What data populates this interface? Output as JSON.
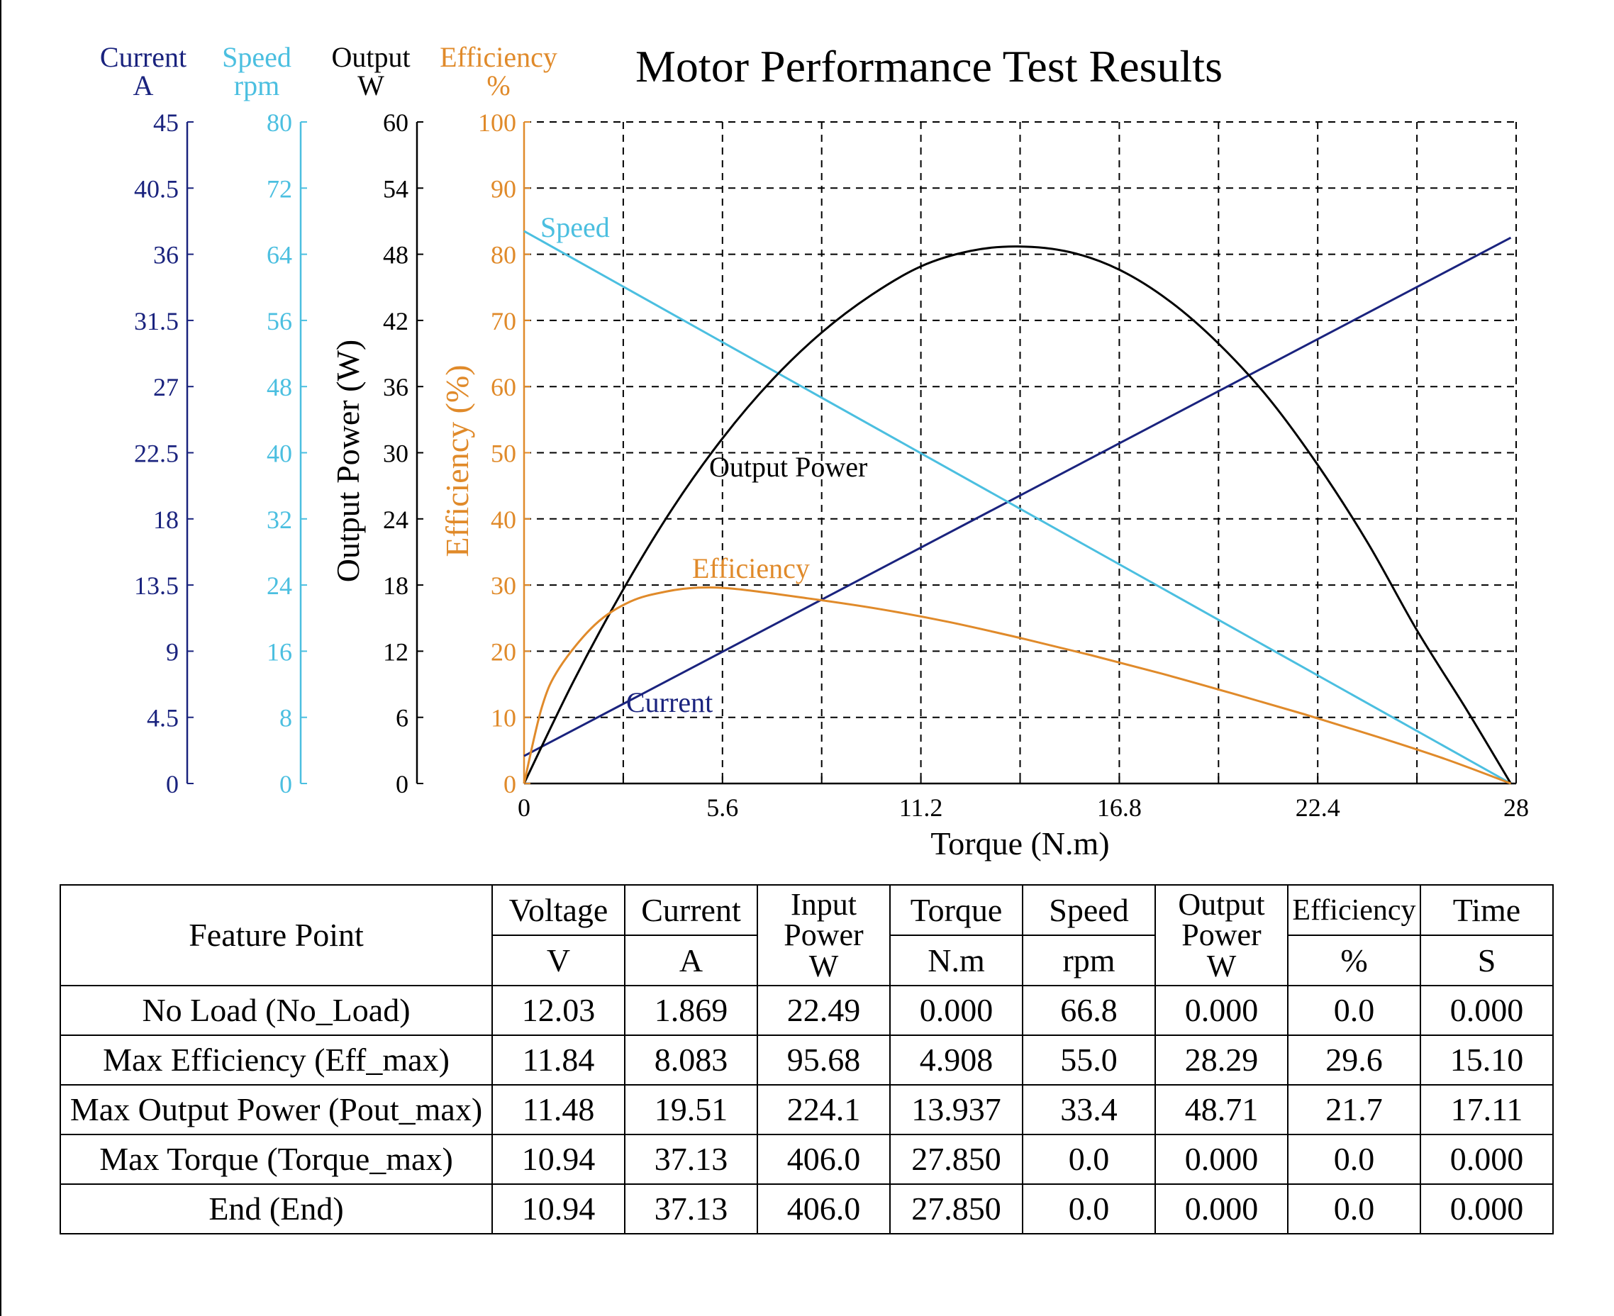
{
  "title": "Motor Performance Test Results",
  "colors": {
    "current": "#1a237e",
    "speed": "#4bbfe0",
    "output": "#000000",
    "efficiency": "#e08a2a",
    "grid": "#000000"
  },
  "axes": {
    "current": {
      "name": "Current",
      "unit": "A",
      "ticks": [
        "0",
        "4.5",
        "9",
        "13.5",
        "18",
        "22.5",
        "27",
        "31.5",
        "36",
        "40.5",
        "45"
      ],
      "range": [
        0,
        45
      ]
    },
    "speed": {
      "name": "Speed",
      "unit": "rpm",
      "ticks": [
        "0",
        "8",
        "16",
        "24",
        "32",
        "40",
        "48",
        "56",
        "64",
        "72",
        "80"
      ],
      "range": [
        0,
        80
      ]
    },
    "output": {
      "name": "Output",
      "unit": "W",
      "label": "Output Power (W)",
      "ticks": [
        "0",
        "6",
        "12",
        "18",
        "24",
        "30",
        "36",
        "42",
        "48",
        "54",
        "60"
      ],
      "range": [
        0,
        60
      ]
    },
    "efficiency": {
      "name": "Efficiency",
      "unit": "%",
      "label": "Efficiency (%)",
      "ticks": [
        "0",
        "10",
        "20",
        "30",
        "40",
        "50",
        "60",
        "70",
        "80",
        "90",
        "100"
      ],
      "range": [
        0,
        100
      ]
    },
    "x": {
      "label": "Torque (N.m)",
      "ticks": [
        "0",
        "5.6",
        "11.2",
        "16.8",
        "22.4",
        "28"
      ],
      "range": [
        0,
        28
      ]
    }
  },
  "chart_data": {
    "type": "line",
    "title": "Motor Performance Test Results",
    "xlabel": "Torque (N.m)",
    "xlim": [
      0,
      28
    ],
    "grid": true,
    "series": [
      {
        "name": "Current",
        "axis": "current",
        "x": [
          0,
          27.85
        ],
        "values": [
          1.869,
          37.13
        ]
      },
      {
        "name": "Speed",
        "axis": "speed",
        "x": [
          0,
          27.85
        ],
        "values": [
          66.8,
          0.0
        ]
      },
      {
        "name": "Output Power",
        "axis": "output",
        "x": [
          0,
          1.4,
          2.8,
          4.2,
          5.6,
          7.0,
          8.4,
          9.8,
          11.2,
          12.6,
          13.937,
          15.4,
          16.8,
          18.2,
          19.6,
          21.0,
          22.4,
          23.8,
          25.2,
          26.6,
          27.85
        ],
        "values": [
          0,
          9.3,
          17.6,
          25.0,
          31.3,
          36.6,
          40.9,
          44.3,
          46.9,
          48.3,
          48.71,
          48.2,
          46.6,
          43.8,
          39.9,
          35.0,
          28.9,
          21.9,
          13.9,
          6.7,
          0
        ]
      },
      {
        "name": "Efficiency",
        "axis": "efficiency",
        "x": [
          0,
          0.5,
          1.0,
          2.0,
          3.0,
          4.0,
          4.908,
          6.0,
          8.0,
          10.0,
          12.0,
          14.0,
          16.0,
          18.0,
          20.0,
          22.0,
          24.0,
          26.0,
          27.85
        ],
        "values": [
          0,
          11.5,
          17.5,
          24.0,
          27.5,
          29.0,
          29.6,
          29.4,
          28.0,
          26.4,
          24.4,
          22.0,
          19.4,
          16.6,
          13.6,
          10.5,
          7.2,
          3.7,
          0
        ]
      }
    ],
    "annotations": [
      "Speed",
      "Output Power",
      "Efficiency",
      "Current"
    ]
  },
  "table": {
    "feature_header": "Feature Point",
    "columns": [
      {
        "name": "Voltage",
        "unit": "V"
      },
      {
        "name": "Current",
        "unit": "A"
      },
      {
        "name": "Input Power",
        "unit": "W"
      },
      {
        "name": "Torque",
        "unit": "N.m"
      },
      {
        "name": "Speed",
        "unit": "rpm"
      },
      {
        "name": "Output Power",
        "unit": "W"
      },
      {
        "name": "Efficiency",
        "unit": "%"
      },
      {
        "name": "Time",
        "unit": "S"
      }
    ],
    "rows": [
      {
        "label": "No Load (No_Load)",
        "values": [
          "12.03",
          "1.869",
          "22.49",
          "0.000",
          "66.8",
          "0.000",
          "0.0",
          "0.000"
        ]
      },
      {
        "label": "Max Efficiency (Eff_max)",
        "values": [
          "11.84",
          "8.083",
          "95.68",
          "4.908",
          "55.0",
          "28.29",
          "29.6",
          "15.10"
        ]
      },
      {
        "label": "Max Output Power (Pout_max)",
        "values": [
          "11.48",
          "19.51",
          "224.1",
          "13.937",
          "33.4",
          "48.71",
          "21.7",
          "17.11"
        ]
      },
      {
        "label": "Max Torque (Torque_max)",
        "values": [
          "10.94",
          "37.13",
          "406.0",
          "27.850",
          "0.0",
          "0.000",
          "0.0",
          "0.000"
        ]
      },
      {
        "label": "End (End)",
        "values": [
          "10.94",
          "37.13",
          "406.0",
          "27.850",
          "0.0",
          "0.000",
          "0.0",
          "0.000"
        ]
      }
    ]
  }
}
